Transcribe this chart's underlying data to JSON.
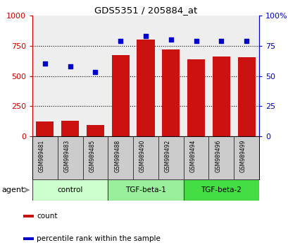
{
  "title": "GDS5351 / 205884_at",
  "samples": [
    "GSM989481",
    "GSM989483",
    "GSM989485",
    "GSM989488",
    "GSM989490",
    "GSM989492",
    "GSM989494",
    "GSM989496",
    "GSM989499"
  ],
  "counts": [
    120,
    130,
    95,
    670,
    800,
    720,
    640,
    660,
    655
  ],
  "percentiles": [
    60,
    58,
    53,
    79,
    83,
    80,
    79,
    79,
    79
  ],
  "bar_color": "#cc1111",
  "dot_color": "#0000cc",
  "ylim_left": [
    0,
    1000
  ],
  "ylim_right": [
    0,
    100
  ],
  "yticks_left": [
    0,
    250,
    500,
    750,
    1000
  ],
  "yticks_right": [
    0,
    25,
    50,
    75,
    100
  ],
  "grid_values": [
    250,
    500,
    750
  ],
  "groups": [
    {
      "label": "control",
      "indices": [
        0,
        1,
        2
      ],
      "color": "#ccffcc"
    },
    {
      "label": "TGF-beta-1",
      "indices": [
        3,
        4,
        5
      ],
      "color": "#99ee99"
    },
    {
      "label": "TGF-beta-2",
      "indices": [
        6,
        7,
        8
      ],
      "color": "#44dd44"
    }
  ],
  "agent_label": "agent",
  "legend_count_label": "count",
  "legend_pct_label": "percentile rank within the sample",
  "chart_bg": "#eeeeee",
  "samp_bg": "#cccccc",
  "title_color": "#000000",
  "left_axis_color": "#cc0000",
  "right_axis_color": "#0000cc"
}
